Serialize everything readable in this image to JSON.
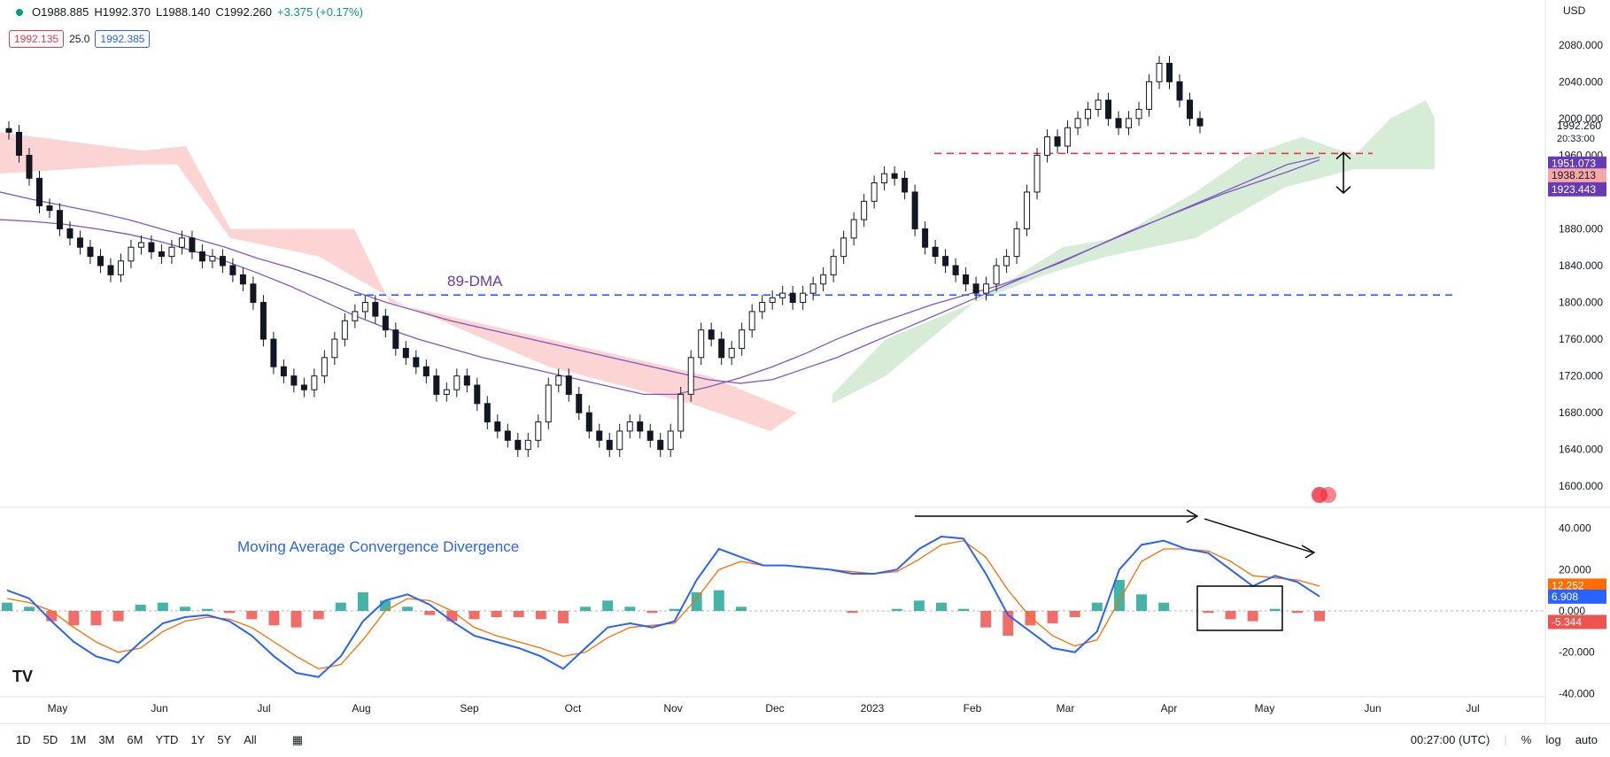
{
  "header": {
    "open": "O1988.885",
    "high": "H1992.370",
    "low": "L1988.140",
    "close": "C1992.260",
    "change": "+3.375 (+0.17%)",
    "bid": "1992.135",
    "spread": "25.0",
    "ask": "1992.385",
    "currency": "USD"
  },
  "annotations": {
    "dma_label": "89-DMA",
    "macd_title": "Moving Average Convergence Divergence"
  },
  "price_labels": {
    "last": "1992.260",
    "countdown": "20:33:00",
    "cloud_top": "1951.073",
    "cloud_mid": "1938.213",
    "cloud_bottom": "1923.443",
    "macd_signal": "12.252",
    "macd_line": "6.908",
    "macd_hist": "-5.344"
  },
  "bottom": {
    "timeframes": [
      "1D",
      "5D",
      "1M",
      "3M",
      "6M",
      "YTD",
      "1Y",
      "5Y",
      "All"
    ],
    "time": "00:27:00 (UTC)",
    "pct": "%",
    "log": "log",
    "auto": "auto"
  },
  "chart_data": [
    {
      "type": "candlestick",
      "title": "",
      "ylim": [
        1580,
        2100
      ],
      "y_ticks": [
        "2080.000",
        "2040.000",
        "2000.000",
        "1960.000",
        "1920.000",
        "1880.000",
        "1840.000",
        "1800.000",
        "1760.000",
        "1720.000",
        "1680.000",
        "1640.000",
        "1600.000"
      ],
      "x_ticks": [
        "May",
        "Jun",
        "Jul",
        "Aug",
        "Sep",
        "Oct",
        "Nov",
        "Dec",
        "2023",
        "Feb",
        "Mar",
        "Apr",
        "May",
        "Jun",
        "Jul"
      ],
      "close_series": [
        1985,
        1960,
        1935,
        1905,
        1900,
        1880,
        1870,
        1860,
        1850,
        1840,
        1830,
        1845,
        1860,
        1865,
        1855,
        1850,
        1860,
        1870,
        1855,
        1845,
        1850,
        1840,
        1830,
        1820,
        1800,
        1760,
        1730,
        1720,
        1710,
        1705,
        1720,
        1740,
        1760,
        1780,
        1790,
        1800,
        1785,
        1770,
        1750,
        1740,
        1730,
        1720,
        1700,
        1705,
        1720,
        1710,
        1690,
        1670,
        1660,
        1650,
        1640,
        1650,
        1670,
        1710,
        1720,
        1700,
        1680,
        1660,
        1650,
        1640,
        1660,
        1670,
        1660,
        1650,
        1640,
        1660,
        1700,
        1740,
        1770,
        1760,
        1740,
        1750,
        1770,
        1790,
        1800,
        1805,
        1810,
        1800,
        1810,
        1820,
        1830,
        1850,
        1870,
        1890,
        1910,
        1930,
        1940,
        1935,
        1920,
        1880,
        1860,
        1850,
        1840,
        1830,
        1820,
        1810,
        1820,
        1840,
        1850,
        1880,
        1920,
        1960,
        1980,
        1970,
        1990,
        2000,
        2010,
        2020,
        2000,
        1990,
        2000,
        2010,
        2040,
        2060,
        2040,
        2020,
        2000,
        1992
      ],
      "series": [
        {
          "name": "",
          "color": "#7e57c2"
        },
        {
          "name": "",
          "color": "#7e57c2"
        }
      ],
      "levels": [
        {
          "label": "89-DMA",
          "value": 1808,
          "color": "#2962ff"
        },
        {
          "label": "",
          "value": 1962,
          "color": "#f23645"
        }
      ]
    },
    {
      "type": "bar",
      "title": "Moving Average Convergence Divergence",
      "ylim": [
        -45,
        45
      ],
      "y_ticks": [
        "40.000",
        "20.000",
        "0.000",
        "-20.000",
        "-40.000"
      ],
      "macd_line": [
        10,
        6,
        -5,
        -15,
        -22,
        -25,
        -15,
        -6,
        -3,
        -2,
        -5,
        -12,
        -22,
        -30,
        -32,
        -22,
        -5,
        5,
        8,
        3,
        -5,
        -12,
        -15,
        -18,
        -22,
        -28,
        -18,
        -8,
        -6,
        -8,
        -5,
        15,
        30,
        26,
        22,
        22,
        21,
        20,
        18,
        18,
        20,
        30,
        36,
        35,
        18,
        -2,
        -10,
        -18,
        -20,
        -10,
        20,
        32,
        34,
        30,
        28,
        20,
        12,
        17,
        14,
        7
      ],
      "signal_line": [
        6,
        4,
        0,
        -8,
        -15,
        -20,
        -18,
        -10,
        -5,
        -3,
        -4,
        -8,
        -15,
        -22,
        -28,
        -26,
        -14,
        0,
        6,
        5,
        0,
        -8,
        -12,
        -15,
        -18,
        -22,
        -20,
        -13,
        -8,
        -7,
        -6,
        6,
        20,
        24,
        22,
        22,
        21,
        20,
        19,
        18,
        19,
        25,
        32,
        34,
        26,
        10,
        -3,
        -12,
        -17,
        -14,
        5,
        24,
        30,
        30,
        29,
        24,
        17,
        16,
        15,
        12
      ],
      "histogram": [
        4,
        2,
        -5,
        -7,
        -7,
        -5,
        3,
        4,
        2,
        1,
        -1,
        -4,
        -7,
        -8,
        -4,
        4,
        9,
        5,
        2,
        -2,
        -5,
        -4,
        -3,
        -3,
        -4,
        -6,
        2,
        5,
        2,
        -1,
        1,
        9,
        10,
        2,
        0,
        0,
        0,
        0,
        -1,
        0,
        1,
        5,
        4,
        1,
        -8,
        -12,
        -7,
        -6,
        -3,
        4,
        15,
        8,
        4,
        0,
        -1,
        -4,
        -5,
        1,
        -1,
        -5
      ]
    }
  ]
}
